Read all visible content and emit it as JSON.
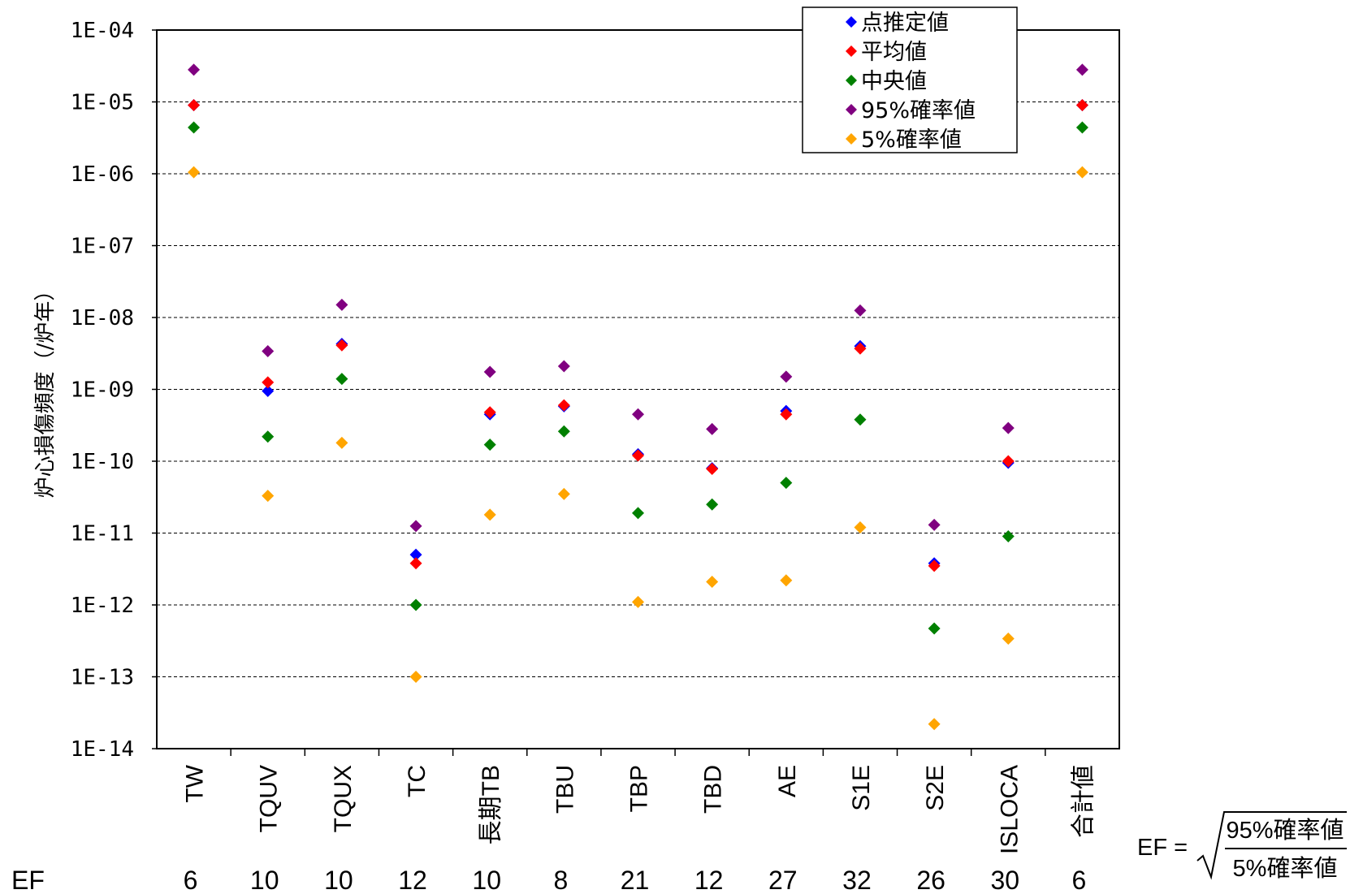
{
  "chart_data": {
    "type": "scatter",
    "ylabel": "炉心損傷頻度（/炉年）",
    "y_scale": "log",
    "ylim": [
      1e-14,
      0.0001
    ],
    "y_ticks": [
      "1E-14",
      "1E-13",
      "1E-12",
      "1E-11",
      "1E-10",
      "1E-09",
      "1E-08",
      "1E-07",
      "1E-06",
      "1E-05",
      "1E-04"
    ],
    "grid": true,
    "legend_position": "top-right",
    "categories": [
      "TW",
      "TQUV",
      "TQUX",
      "TC",
      "長期TB",
      "TBU",
      "TBP",
      "TBD",
      "AE",
      "S1E",
      "S2E",
      "ISLOCA",
      "合計値"
    ],
    "series": [
      {
        "name": "点推定値",
        "color": "#0000ff",
        "values": [
          9e-06,
          9.5e-10,
          4.3e-09,
          5e-12,
          4.5e-10,
          5.8e-10,
          1.25e-10,
          8e-11,
          5e-10,
          4e-09,
          3.8e-12,
          9.5e-11,
          9e-06
        ]
      },
      {
        "name": "平均値",
        "color": "#ff0000",
        "values": [
          9e-06,
          1.25e-09,
          4.1e-09,
          3.8e-12,
          4.8e-10,
          6e-10,
          1.2e-10,
          7.8e-11,
          4.5e-10,
          3.7e-09,
          3.5e-12,
          1e-10,
          9e-06
        ]
      },
      {
        "name": "中央値",
        "color": "#008000",
        "values": [
          4.4e-06,
          2.2e-10,
          1.4e-09,
          1e-12,
          1.7e-10,
          2.6e-10,
          1.9e-11,
          2.5e-11,
          5e-11,
          3.8e-10,
          4.7e-13,
          9e-12,
          4.4e-06
        ]
      },
      {
        "name": "95%確率値",
        "color": "#800080",
        "values": [
          2.8e-05,
          3.4e-09,
          1.5e-08,
          1.25e-11,
          1.75e-09,
          2.1e-09,
          4.5e-10,
          2.8e-10,
          1.5e-09,
          1.25e-08,
          1.3e-11,
          2.9e-10,
          2.8e-05
        ]
      },
      {
        "name": "5%確率値",
        "color": "#ffa500",
        "values": [
          1.05e-06,
          3.3e-11,
          1.8e-10,
          1e-13,
          1.8e-11,
          3.5e-11,
          1.1e-12,
          2.1e-12,
          2.2e-12,
          1.2e-11,
          2.2e-14,
          3.4e-13,
          1.05e-06
        ]
      }
    ],
    "ef_label": "EF",
    "ef_values": [
      "6",
      "10",
      "10",
      "12",
      "10",
      "8",
      "21",
      "12",
      "27",
      "32",
      "26",
      "30",
      "6"
    ],
    "formula": {
      "lhs": "EF =",
      "numerator": "95%確率値",
      "denominator": "5%確率値"
    }
  }
}
